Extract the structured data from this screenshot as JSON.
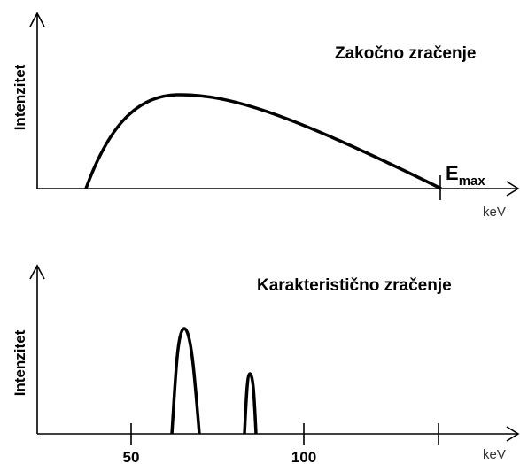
{
  "top": {
    "title": "Zakočno zračenje",
    "y_label": "Intenzitet",
    "x_label": "keV",
    "emax": {
      "main": "E",
      "sub": "max"
    }
  },
  "bottom": {
    "title": "Karakteristično zračenje",
    "y_label": "Intenzitet",
    "x_label": "keV",
    "ticks": [
      "50",
      "100"
    ]
  }
}
